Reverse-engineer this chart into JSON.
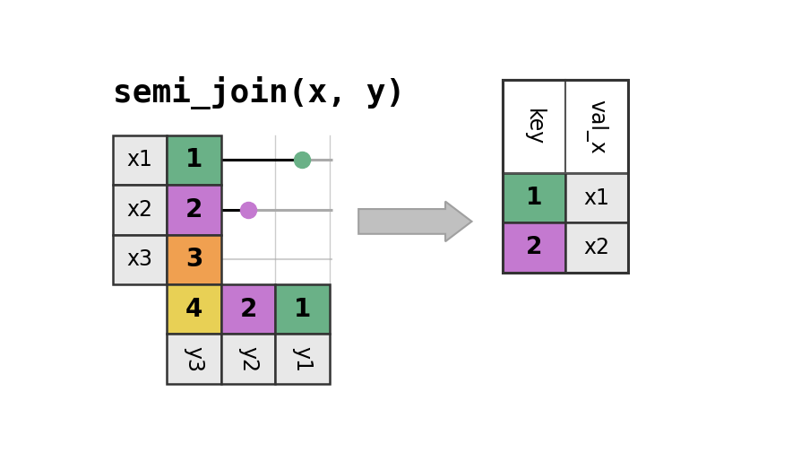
{
  "title": "semi_join(x, y)",
  "title_fontsize": 26,
  "title_font": "monospace",
  "bg_color": "#ffffff",
  "colors": {
    "green": "#6ab187",
    "purple": "#c479d0",
    "orange": "#f0a050",
    "yellow": "#e8d055",
    "light_gray": "#e8e8e8",
    "white": "#ffffff",
    "gray_line": "#aaaaaa",
    "dark_gray": "#bbbbbb"
  },
  "x_table": {
    "val_x": [
      "x1",
      "x2",
      "x3"
    ],
    "key": [
      "1",
      "2",
      "3"
    ],
    "key_colors": [
      "#6ab187",
      "#c479d0",
      "#f0a050"
    ]
  },
  "y_table": {
    "key": [
      "4",
      "2",
      "1"
    ],
    "key_colors": [
      "#e8d055",
      "#c479d0",
      "#6ab187"
    ],
    "val_y": [
      "y3",
      "y2",
      "y1"
    ]
  },
  "result_table": {
    "key": [
      "1",
      "2"
    ],
    "key_colors": [
      "#6ab187",
      "#c479d0"
    ],
    "val_x": [
      "x1",
      "x2"
    ]
  },
  "lines": [
    {
      "key": "1",
      "color": "#6ab187",
      "active": true,
      "dot_col": 2
    },
    {
      "key": "2",
      "color": "#c479d0",
      "active": true,
      "dot_col": 1
    },
    {
      "key": "3",
      "color": "#aaaaaa",
      "active": false,
      "dot_col": -1
    }
  ],
  "grid_lines": {
    "color": "#cccccc",
    "lw": 1.0
  }
}
